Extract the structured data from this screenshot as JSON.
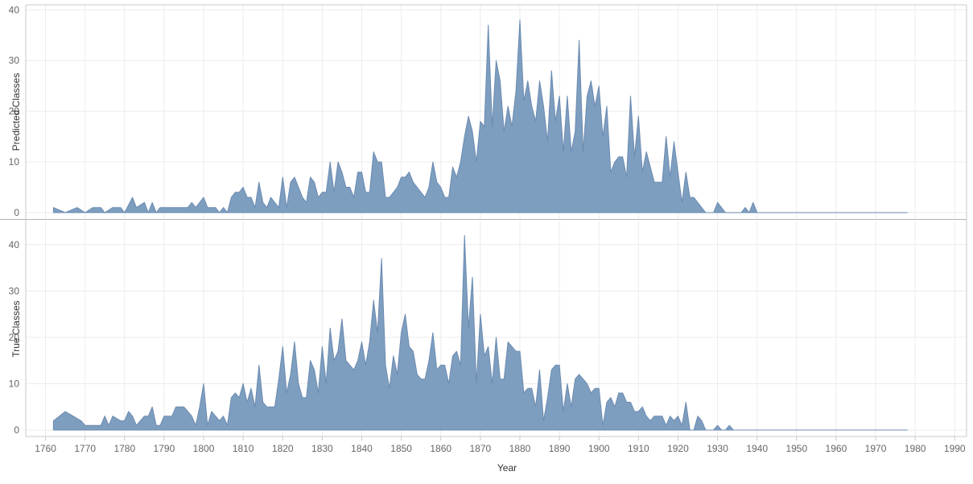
{
  "chart_data": {
    "type": "area",
    "xlabel": "Year",
    "x_ticks": [
      1760,
      1770,
      1780,
      1790,
      1800,
      1810,
      1820,
      1830,
      1840,
      1850,
      1860,
      1870,
      1880,
      1890,
      1900,
      1910,
      1920,
      1930,
      1940,
      1950,
      1960,
      1970,
      1980,
      1990
    ],
    "xlim": [
      1755,
      1993
    ],
    "grid": true,
    "color": "#7e9ec0",
    "stroke_color": "#6b8bb0",
    "panels": [
      {
        "ylabel": "Predicted Classes",
        "ylim": [
          0,
          41
        ],
        "y_ticks": [
          0,
          10,
          20,
          30,
          40
        ],
        "points": [
          [
            1762,
            1
          ],
          [
            1765,
            0
          ],
          [
            1768,
            1
          ],
          [
            1770,
            0
          ],
          [
            1772,
            1
          ],
          [
            1774,
            1
          ],
          [
            1775,
            0
          ],
          [
            1777,
            1
          ],
          [
            1779,
            1
          ],
          [
            1780,
            0
          ],
          [
            1782,
            3
          ],
          [
            1783,
            1
          ],
          [
            1785,
            2
          ],
          [
            1786,
            0
          ],
          [
            1787,
            2
          ],
          [
            1788,
            0
          ],
          [
            1789,
            1
          ],
          [
            1796,
            1
          ],
          [
            1797,
            2
          ],
          [
            1798,
            1
          ],
          [
            1800,
            3
          ],
          [
            1801,
            1
          ],
          [
            1803,
            1
          ],
          [
            1804,
            0
          ],
          [
            1805,
            1
          ],
          [
            1806,
            0
          ],
          [
            1807,
            3
          ],
          [
            1808,
            4
          ],
          [
            1809,
            4
          ],
          [
            1810,
            5
          ],
          [
            1811,
            3
          ],
          [
            1812,
            3
          ],
          [
            1813,
            1
          ],
          [
            1814,
            6
          ],
          [
            1815,
            2
          ],
          [
            1816,
            1
          ],
          [
            1817,
            3
          ],
          [
            1818,
            2
          ],
          [
            1819,
            1
          ],
          [
            1820,
            7
          ],
          [
            1821,
            1
          ],
          [
            1822,
            6
          ],
          [
            1823,
            7
          ],
          [
            1824,
            5
          ],
          [
            1825,
            3
          ],
          [
            1826,
            2
          ],
          [
            1827,
            7
          ],
          [
            1828,
            6
          ],
          [
            1829,
            3
          ],
          [
            1830,
            4
          ],
          [
            1831,
            4
          ],
          [
            1832,
            10
          ],
          [
            1833,
            4
          ],
          [
            1834,
            10
          ],
          [
            1835,
            8
          ],
          [
            1836,
            5
          ],
          [
            1837,
            5
          ],
          [
            1838,
            3
          ],
          [
            1839,
            8
          ],
          [
            1840,
            8
          ],
          [
            1841,
            4
          ],
          [
            1842,
            4
          ],
          [
            1843,
            12
          ],
          [
            1844,
            10
          ],
          [
            1845,
            10
          ],
          [
            1846,
            3
          ],
          [
            1847,
            3
          ],
          [
            1848,
            4
          ],
          [
            1849,
            5
          ],
          [
            1850,
            7
          ],
          [
            1851,
            7
          ],
          [
            1852,
            8
          ],
          [
            1853,
            6
          ],
          [
            1854,
            5
          ],
          [
            1855,
            4
          ],
          [
            1856,
            3
          ],
          [
            1857,
            5
          ],
          [
            1858,
            10
          ],
          [
            1859,
            6
          ],
          [
            1860,
            5
          ],
          [
            1861,
            3
          ],
          [
            1862,
            3
          ],
          [
            1863,
            9
          ],
          [
            1864,
            7
          ],
          [
            1865,
            10
          ],
          [
            1866,
            15
          ],
          [
            1867,
            19
          ],
          [
            1868,
            16
          ],
          [
            1869,
            10
          ],
          [
            1870,
            18
          ],
          [
            1871,
            17
          ],
          [
            1872,
            37
          ],
          [
            1873,
            17
          ],
          [
            1874,
            30
          ],
          [
            1875,
            26
          ],
          [
            1876,
            16
          ],
          [
            1877,
            21
          ],
          [
            1878,
            17
          ],
          [
            1879,
            24
          ],
          [
            1880,
            38
          ],
          [
            1881,
            22
          ],
          [
            1882,
            26
          ],
          [
            1883,
            21
          ],
          [
            1884,
            18
          ],
          [
            1885,
            26
          ],
          [
            1886,
            21
          ],
          [
            1887,
            14
          ],
          [
            1888,
            28
          ],
          [
            1889,
            18
          ],
          [
            1890,
            23
          ],
          [
            1891,
            12
          ],
          [
            1892,
            23
          ],
          [
            1893,
            12
          ],
          [
            1894,
            16
          ],
          [
            1895,
            34
          ],
          [
            1896,
            12
          ],
          [
            1897,
            23
          ],
          [
            1898,
            26
          ],
          [
            1899,
            21
          ],
          [
            1900,
            25
          ],
          [
            1901,
            15
          ],
          [
            1902,
            21
          ],
          [
            1903,
            8
          ],
          [
            1904,
            10
          ],
          [
            1905,
            11
          ],
          [
            1906,
            11
          ],
          [
            1907,
            7
          ],
          [
            1908,
            23
          ],
          [
            1909,
            11
          ],
          [
            1910,
            19
          ],
          [
            1911,
            8
          ],
          [
            1912,
            12
          ],
          [
            1913,
            9
          ],
          [
            1914,
            6
          ],
          [
            1915,
            6
          ],
          [
            1916,
            6
          ],
          [
            1917,
            15
          ],
          [
            1918,
            7
          ],
          [
            1919,
            14
          ],
          [
            1920,
            8
          ],
          [
            1921,
            2
          ],
          [
            1922,
            8
          ],
          [
            1923,
            3
          ],
          [
            1924,
            3
          ],
          [
            1925,
            2
          ],
          [
            1926,
            1
          ],
          [
            1927,
            0
          ],
          [
            1928,
            0
          ],
          [
            1929,
            0
          ],
          [
            1930,
            2
          ],
          [
            1931,
            1
          ],
          [
            1932,
            0
          ],
          [
            1933,
            0
          ],
          [
            1934,
            0
          ],
          [
            1935,
            0
          ],
          [
            1936,
            0
          ],
          [
            1937,
            1
          ],
          [
            1938,
            0
          ],
          [
            1939,
            2
          ],
          [
            1940,
            0
          ],
          [
            1978,
            0
          ]
        ]
      },
      {
        "ylabel": "True Classes",
        "ylim": [
          0,
          45
        ],
        "y_ticks": [
          0,
          10,
          20,
          30,
          40
        ],
        "points": [
          [
            1762,
            2
          ],
          [
            1765,
            4
          ],
          [
            1767,
            3
          ],
          [
            1769,
            2
          ],
          [
            1770,
            1
          ],
          [
            1772,
            1
          ],
          [
            1773,
            1
          ],
          [
            1774,
            1
          ],
          [
            1775,
            3
          ],
          [
            1776,
            1
          ],
          [
            1777,
            3
          ],
          [
            1779,
            2
          ],
          [
            1780,
            2
          ],
          [
            1781,
            4
          ],
          [
            1782,
            3
          ],
          [
            1783,
            1
          ],
          [
            1785,
            3
          ],
          [
            1786,
            3
          ],
          [
            1787,
            5
          ],
          [
            1788,
            1
          ],
          [
            1789,
            1
          ],
          [
            1790,
            3
          ],
          [
            1792,
            3
          ],
          [
            1793,
            5
          ],
          [
            1795,
            5
          ],
          [
            1796,
            4
          ],
          [
            1797,
            3
          ],
          [
            1798,
            1
          ],
          [
            1799,
            5
          ],
          [
            1800,
            10
          ],
          [
            1801,
            1
          ],
          [
            1802,
            4
          ],
          [
            1803,
            3
          ],
          [
            1804,
            2
          ],
          [
            1805,
            3
          ],
          [
            1806,
            1
          ],
          [
            1807,
            7
          ],
          [
            1808,
            8
          ],
          [
            1809,
            7
          ],
          [
            1810,
            10
          ],
          [
            1811,
            6
          ],
          [
            1812,
            9
          ],
          [
            1813,
            5
          ],
          [
            1814,
            14
          ],
          [
            1815,
            6
          ],
          [
            1816,
            5
          ],
          [
            1817,
            5
          ],
          [
            1818,
            5
          ],
          [
            1819,
            11
          ],
          [
            1820,
            18
          ],
          [
            1821,
            8
          ],
          [
            1822,
            12
          ],
          [
            1823,
            19
          ],
          [
            1824,
            10
          ],
          [
            1825,
            7
          ],
          [
            1826,
            7
          ],
          [
            1827,
            15
          ],
          [
            1828,
            13
          ],
          [
            1829,
            8
          ],
          [
            1830,
            18
          ],
          [
            1831,
            10
          ],
          [
            1832,
            22
          ],
          [
            1833,
            15
          ],
          [
            1834,
            17
          ],
          [
            1835,
            24
          ],
          [
            1836,
            15
          ],
          [
            1837,
            14
          ],
          [
            1838,
            13
          ],
          [
            1839,
            15
          ],
          [
            1840,
            19
          ],
          [
            1841,
            14
          ],
          [
            1842,
            19
          ],
          [
            1843,
            28
          ],
          [
            1844,
            21
          ],
          [
            1845,
            37
          ],
          [
            1846,
            14
          ],
          [
            1847,
            9
          ],
          [
            1848,
            16
          ],
          [
            1849,
            12
          ],
          [
            1850,
            21
          ],
          [
            1851,
            25
          ],
          [
            1852,
            18
          ],
          [
            1853,
            17
          ],
          [
            1854,
            12
          ],
          [
            1855,
            11
          ],
          [
            1856,
            11
          ],
          [
            1857,
            15
          ],
          [
            1858,
            21
          ],
          [
            1859,
            13
          ],
          [
            1860,
            14
          ],
          [
            1861,
            14
          ],
          [
            1862,
            10
          ],
          [
            1863,
            16
          ],
          [
            1864,
            17
          ],
          [
            1865,
            14
          ],
          [
            1866,
            42
          ],
          [
            1867,
            22
          ],
          [
            1868,
            33
          ],
          [
            1869,
            10
          ],
          [
            1870,
            25
          ],
          [
            1871,
            16
          ],
          [
            1872,
            18
          ],
          [
            1873,
            10
          ],
          [
            1874,
            20
          ],
          [
            1875,
            11
          ],
          [
            1876,
            11
          ],
          [
            1877,
            19
          ],
          [
            1878,
            18
          ],
          [
            1879,
            17
          ],
          [
            1880,
            17
          ],
          [
            1881,
            8
          ],
          [
            1882,
            9
          ],
          [
            1883,
            9
          ],
          [
            1884,
            5
          ],
          [
            1885,
            13
          ],
          [
            1886,
            2
          ],
          [
            1887,
            7
          ],
          [
            1888,
            13
          ],
          [
            1889,
            14
          ],
          [
            1890,
            14
          ],
          [
            1891,
            4
          ],
          [
            1892,
            10
          ],
          [
            1893,
            5
          ],
          [
            1894,
            11
          ],
          [
            1895,
            12
          ],
          [
            1896,
            11
          ],
          [
            1897,
            10
          ],
          [
            1898,
            8
          ],
          [
            1899,
            9
          ],
          [
            1900,
            9
          ],
          [
            1901,
            1
          ],
          [
            1902,
            6
          ],
          [
            1903,
            7
          ],
          [
            1904,
            5
          ],
          [
            1905,
            8
          ],
          [
            1906,
            8
          ],
          [
            1907,
            6
          ],
          [
            1908,
            6
          ],
          [
            1909,
            4
          ],
          [
            1910,
            4
          ],
          [
            1911,
            5
          ],
          [
            1912,
            3
          ],
          [
            1913,
            2
          ],
          [
            1914,
            3
          ],
          [
            1915,
            3
          ],
          [
            1916,
            3
          ],
          [
            1917,
            1
          ],
          [
            1918,
            3
          ],
          [
            1919,
            2
          ],
          [
            1920,
            3
          ],
          [
            1921,
            1
          ],
          [
            1922,
            6
          ],
          [
            1923,
            0
          ],
          [
            1924,
            0
          ],
          [
            1925,
            3
          ],
          [
            1926,
            2
          ],
          [
            1927,
            0
          ],
          [
            1928,
            0
          ],
          [
            1929,
            0
          ],
          [
            1930,
            1
          ],
          [
            1931,
            0
          ],
          [
            1932,
            0
          ],
          [
            1933,
            1
          ],
          [
            1934,
            0
          ],
          [
            1978,
            0
          ]
        ]
      }
    ]
  }
}
